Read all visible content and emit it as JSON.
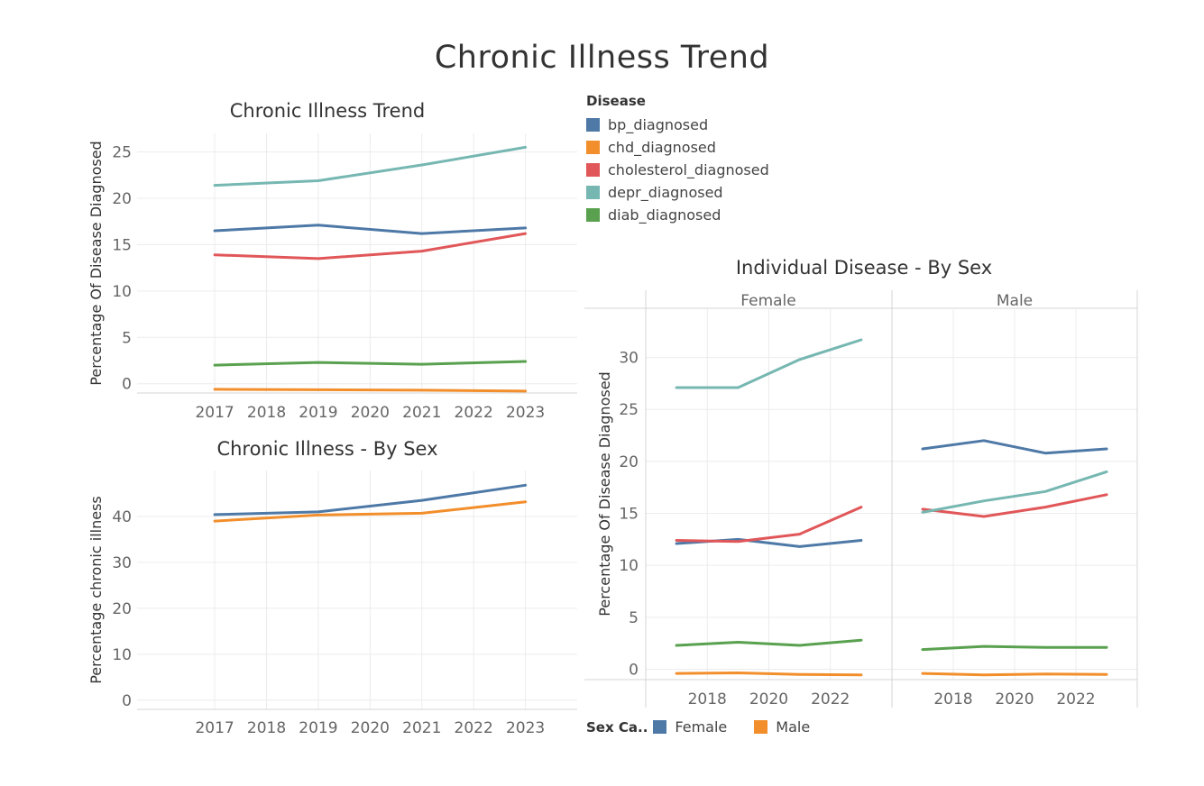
{
  "dashboard": {
    "title": "Chronic Illness Trend"
  },
  "legend": {
    "title": "Disease",
    "items": [
      {
        "label": "bp_diagnosed",
        "color": "#4e79a7"
      },
      {
        "label": "chd_diagnosed",
        "color": "#f28e2b"
      },
      {
        "label": "cholesterol_diagnosed",
        "color": "#e15759"
      },
      {
        "label": "depr_diagnosed",
        "color": "#76b7b2"
      },
      {
        "label": "diab_diagnosed",
        "color": "#59a14f"
      }
    ]
  },
  "sex_legend": {
    "title": "Sex Ca..",
    "items": [
      {
        "label": "Female",
        "color": "#4e79a7"
      },
      {
        "label": "Male",
        "color": "#f28e2b"
      }
    ]
  },
  "chart_data": [
    {
      "id": "trend",
      "type": "line",
      "title": "Chronic Illness Trend",
      "ylabel": "Percentage Of Disease Diagnosed",
      "x": [
        2017,
        2019,
        2021,
        2023
      ],
      "xticks": [
        "2017",
        "2018",
        "2019",
        "2020",
        "2021",
        "2022",
        "2023"
      ],
      "yticks": [
        "0",
        "5",
        "10",
        "15",
        "20",
        "25"
      ],
      "ylim": [
        -1,
        27
      ],
      "xlim": [
        2015.5,
        2024.0
      ],
      "series": [
        {
          "name": "bp_diagnosed",
          "color": "#4e79a7",
          "values": [
            16.5,
            17.1,
            16.2,
            16.8
          ]
        },
        {
          "name": "chd_diagnosed",
          "color": "#f28e2b",
          "values": [
            -0.6,
            -0.65,
            -0.7,
            -0.8
          ]
        },
        {
          "name": "cholesterol_diagnosed",
          "color": "#e15759",
          "values": [
            13.9,
            13.5,
            14.3,
            16.2
          ]
        },
        {
          "name": "depr_diagnosed",
          "color": "#76b7b2",
          "values": [
            21.4,
            21.9,
            23.6,
            25.5
          ]
        },
        {
          "name": "diab_diagnosed",
          "color": "#59a14f",
          "values": [
            2.0,
            2.3,
            2.1,
            2.4
          ]
        }
      ]
    },
    {
      "id": "bysex",
      "type": "line",
      "title": "Chronic Illness - By Sex",
      "ylabel": "Percentage chronic illness",
      "x": [
        2017,
        2019,
        2021,
        2023
      ],
      "xticks": [
        "2017",
        "2018",
        "2019",
        "2020",
        "2021",
        "2022",
        "2023"
      ],
      "yticks": [
        "0",
        "10",
        "20",
        "30",
        "40"
      ],
      "ylim": [
        -2,
        50
      ],
      "xlim": [
        2015.5,
        2024.0
      ],
      "series": [
        {
          "name": "Female",
          "color": "#4e79a7",
          "values": [
            40.4,
            41.0,
            43.5,
            46.8
          ]
        },
        {
          "name": "Male",
          "color": "#f28e2b",
          "values": [
            39.0,
            40.3,
            40.7,
            43.2
          ]
        }
      ]
    },
    {
      "id": "individual",
      "type": "line",
      "title": "Individual Disease - By Sex",
      "ylabel": "Percentage Of Disease Diagnosed",
      "panels": [
        "Female",
        "Male"
      ],
      "x": [
        2017,
        2019,
        2021,
        2023
      ],
      "xticks": [
        "2018",
        "2020",
        "2022"
      ],
      "yticks": [
        "0",
        "5",
        "10",
        "15",
        "20",
        "25",
        "30"
      ],
      "ylim": [
        -1,
        33
      ],
      "xlim": [
        2016.0,
        2024.0
      ],
      "series": [
        {
          "name": "bp_diagnosed",
          "color": "#4e79a7",
          "panel": "Female",
          "values": [
            12.1,
            12.5,
            11.8,
            12.4
          ]
        },
        {
          "name": "chd_diagnosed",
          "color": "#f28e2b",
          "panel": "Female",
          "values": [
            -0.4,
            -0.35,
            -0.5,
            -0.55
          ]
        },
        {
          "name": "cholesterol_diagnosed",
          "color": "#e15759",
          "panel": "Female",
          "values": [
            12.4,
            12.3,
            13.0,
            15.6
          ]
        },
        {
          "name": "depr_diagnosed",
          "color": "#76b7b2",
          "panel": "Female",
          "values": [
            27.1,
            27.1,
            29.8,
            31.7
          ]
        },
        {
          "name": "diab_diagnosed",
          "color": "#59a14f",
          "panel": "Female",
          "values": [
            2.3,
            2.6,
            2.3,
            2.8
          ]
        },
        {
          "name": "bp_diagnosed",
          "color": "#4e79a7",
          "panel": "Male",
          "values": [
            21.2,
            22.0,
            20.8,
            21.2
          ]
        },
        {
          "name": "chd_diagnosed",
          "color": "#f28e2b",
          "panel": "Male",
          "values": [
            -0.4,
            -0.55,
            -0.45,
            -0.5
          ]
        },
        {
          "name": "cholesterol_diagnosed",
          "color": "#e15759",
          "panel": "Male",
          "values": [
            15.4,
            14.7,
            15.6,
            16.8
          ]
        },
        {
          "name": "depr_diagnosed",
          "color": "#76b7b2",
          "panel": "Male",
          "values": [
            15.1,
            16.2,
            17.1,
            19.0
          ]
        },
        {
          "name": "diab_diagnosed",
          "color": "#59a14f",
          "panel": "Male",
          "values": [
            1.9,
            2.2,
            2.1,
            2.1
          ]
        }
      ]
    }
  ]
}
